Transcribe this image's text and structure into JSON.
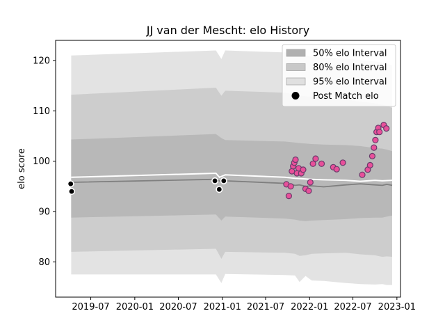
{
  "chart_data": {
    "type": "scatter",
    "title": "JJ van der Mescht: elo History",
    "xlabel": "",
    "ylabel": "elo score",
    "xlim": [
      "2019-02-04",
      "2023-01-16"
    ],
    "ylim": [
      73,
      124
    ],
    "x_ticks": [
      "2019-07",
      "2020-01",
      "2020-07",
      "2021-01",
      "2021-07",
      "2022-01",
      "2022-07",
      "2023-01"
    ],
    "y_ticks": [
      80,
      90,
      100,
      110,
      120
    ],
    "grid": false,
    "legend_position": "upper-right",
    "legend": [
      {
        "label": "50% elo Interval",
        "color": "#b0b0b0"
      },
      {
        "label": "80% elo Interval",
        "color": "#c8c8c8"
      },
      {
        "label": "95% elo Interval",
        "color": "#e0e0e0"
      },
      {
        "label": "Post Match elo",
        "color": "#000000"
      }
    ],
    "bands": {
      "x": [
        "2019-04-10",
        "2020-12-05",
        "2020-12-28",
        "2021-01-13",
        "2021-09-20",
        "2021-11-01",
        "2021-11-20",
        "2021-12-15",
        "2022-01-10",
        "2022-03-01",
        "2022-06-01",
        "2022-08-01",
        "2022-10-01",
        "2022-11-01",
        "2022-11-20",
        "2022-12-12"
      ],
      "mean": [
        95.8,
        96.4,
        95.9,
        96.1,
        95.6,
        95.2,
        95.3,
        95.0,
        95.1,
        94.9,
        95.3,
        95.5,
        95.3,
        95.2,
        95.4,
        95.2
      ],
      "p50_low": [
        88.8,
        89.4,
        88.2,
        89.0,
        88.6,
        88.4,
        88.2,
        88.1,
        88.2,
        88.3,
        88.5,
        88.7,
        88.8,
        88.8,
        89.0,
        89.2
      ],
      "p50_high": [
        104.3,
        105.4,
        104.6,
        104.2,
        103.9,
        103.7,
        103.6,
        103.5,
        103.4,
        103.3,
        103.2,
        103.0,
        102.6,
        102.5,
        102.3,
        102.0
      ],
      "p80_low": [
        82.0,
        82.6,
        80.6,
        82.0,
        81.8,
        81.6,
        81.2,
        81.3,
        81.6,
        81.7,
        81.8,
        81.5,
        81.3,
        81.0,
        81.1,
        81.0
      ],
      "p80_high": [
        113.2,
        114.6,
        113.0,
        114.0,
        113.6,
        113.2,
        113.0,
        112.9,
        112.8,
        112.6,
        112.3,
        111.8,
        111.5,
        111.2,
        111.0,
        110.6
      ],
      "p95_low": [
        77.5,
        77.5,
        75.8,
        77.6,
        77.4,
        77.3,
        76.0,
        77.2,
        76.3,
        76.2,
        75.8,
        75.6,
        75.5,
        75.6,
        75.4,
        75.4
      ],
      "p95_high": [
        121.0,
        122.0,
        120.3,
        122.0,
        121.6,
        121.4,
        121.2,
        121.0,
        120.8,
        120.6,
        120.4,
        120.1,
        119.8,
        119.6,
        119.4,
        119.0
      ]
    },
    "post_match_line": {
      "x": [
        "2019-04-10",
        "2020-12-05",
        "2020-12-20",
        "2021-01-13",
        "2021-09-20",
        "2021-11-01",
        "2022-01-10",
        "2022-03-01",
        "2022-06-01",
        "2022-08-01",
        "2022-10-01",
        "2022-11-01",
        "2022-12-12"
      ],
      "y": [
        96.8,
        97.6,
        96.8,
        97.3,
        96.8,
        96.6,
        96.4,
        96.3,
        96.2,
        96.0,
        96.2,
        96.1,
        96.2
      ]
    },
    "series": [
      {
        "color": "#000000",
        "x": [
          "2019-04-08",
          "2019-04-12",
          "2020-12-01",
          "2020-12-19",
          "2021-01-07"
        ],
        "y": [
          95.5,
          94.0,
          96.1,
          94.4,
          96.1
        ]
      },
      {
        "color": "#e8509a",
        "x": [
          "2021-09-26",
          "2021-10-06",
          "2021-10-14",
          "2021-10-19",
          "2021-10-24",
          "2021-10-29",
          "2021-11-03",
          "2021-11-09",
          "2021-11-16",
          "2021-11-27",
          "2021-12-05",
          "2021-12-15",
          "2021-12-28",
          "2022-01-04",
          "2022-01-15",
          "2022-01-26",
          "2022-02-20",
          "2022-04-10",
          "2022-04-24",
          "2022-05-20",
          "2022-08-09",
          "2022-09-01",
          "2022-09-11",
          "2022-09-20",
          "2022-09-27",
          "2022-10-03",
          "2022-10-08",
          "2022-10-15",
          "2022-10-20",
          "2022-11-07",
          "2022-11-18"
        ],
        "y": [
          95.4,
          93.1,
          95.0,
          98.0,
          99.0,
          99.7,
          100.3,
          97.6,
          98.6,
          97.6,
          98.3,
          94.5,
          94.1,
          95.8,
          99.5,
          100.5,
          99.5,
          98.8,
          98.4,
          99.7,
          97.3,
          98.3,
          99.2,
          101.0,
          102.7,
          104.2,
          105.8,
          106.6,
          105.8,
          107.2,
          106.5
        ]
      }
    ]
  }
}
